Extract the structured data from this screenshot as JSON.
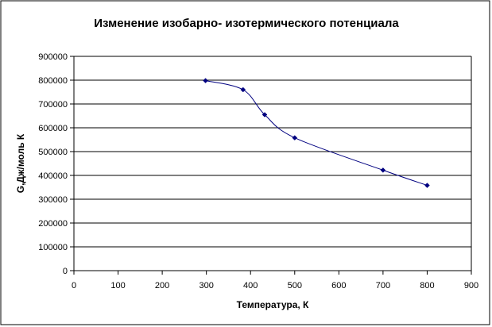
{
  "chart_data": {
    "type": "scatter",
    "title": "Изменение изобарно- изотермического потенциала",
    "xlabel": "Температура, К",
    "ylabel": "G,Дж/моль К",
    "xlim": [
      0,
      900
    ],
    "ylim": [
      0,
      900000
    ],
    "x_ticks": [
      "0",
      "100",
      "200",
      "300",
      "400",
      "500",
      "600",
      "700",
      "800",
      "900"
    ],
    "y_ticks": [
      "0",
      "100000",
      "200000",
      "300000",
      "400000",
      "500000",
      "600000",
      "700000",
      "800000",
      "900000"
    ],
    "grid": "horizontal",
    "smoothed": true,
    "series": [
      {
        "x": [
          298,
          383,
          432,
          500,
          700,
          800
        ],
        "y": [
          798000,
          760000,
          655000,
          558000,
          422000,
          358000
        ],
        "color": "#000080"
      }
    ]
  }
}
